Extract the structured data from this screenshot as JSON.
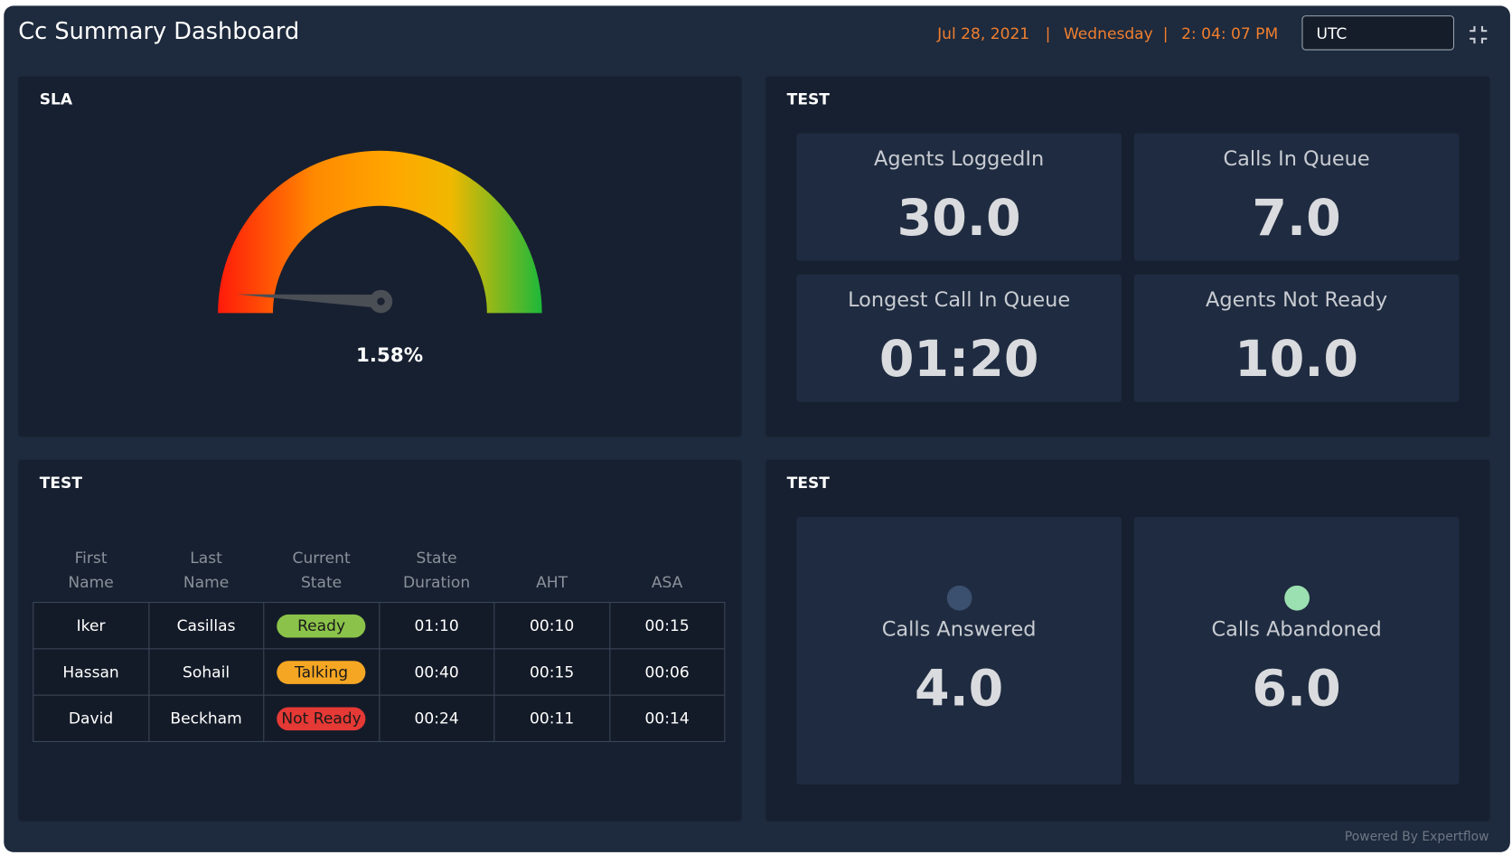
{
  "header": {
    "title": "Cc Summary Dashboard",
    "date": "Jul 28, 2021",
    "separator": "|",
    "day": "Wednesday",
    "time": "2: 04: 07 PM",
    "timezone": "UTC"
  },
  "sla": {
    "title": "SLA",
    "value": 1.58,
    "value_label": "1.58%",
    "lim": [
      0,
      100
    ]
  },
  "stats": {
    "title": "TEST",
    "cards": [
      {
        "label": "Agents LoggedIn",
        "value": "30.0"
      },
      {
        "label": "Calls In Queue",
        "value": "7.0"
      },
      {
        "label": "Longest Call In Queue",
        "value": "01:20"
      },
      {
        "label": "Agents Not Ready",
        "value": "10.0"
      }
    ]
  },
  "agents": {
    "title": "TEST",
    "columns": [
      "First Name",
      "Last Name",
      "Current State",
      "State Duration",
      "AHT",
      "ASA"
    ],
    "rows": [
      [
        "Iker",
        "Casillas",
        "Ready",
        "01:10",
        "00:10",
        "00:15"
      ],
      [
        "Hassan",
        "Sohail",
        "Talking",
        "00:40",
        "00:15",
        "00:06"
      ],
      [
        "David",
        "Beckham",
        "Not Ready",
        "00:24",
        "00:11",
        "00:14"
      ]
    ]
  },
  "calls": {
    "title": "TEST",
    "cards": [
      {
        "label": "Calls Answered",
        "value": "4.0"
      },
      {
        "label": "Calls Abandoned",
        "value": "6.0"
      }
    ]
  },
  "footer": "Powered By Expertflow"
}
